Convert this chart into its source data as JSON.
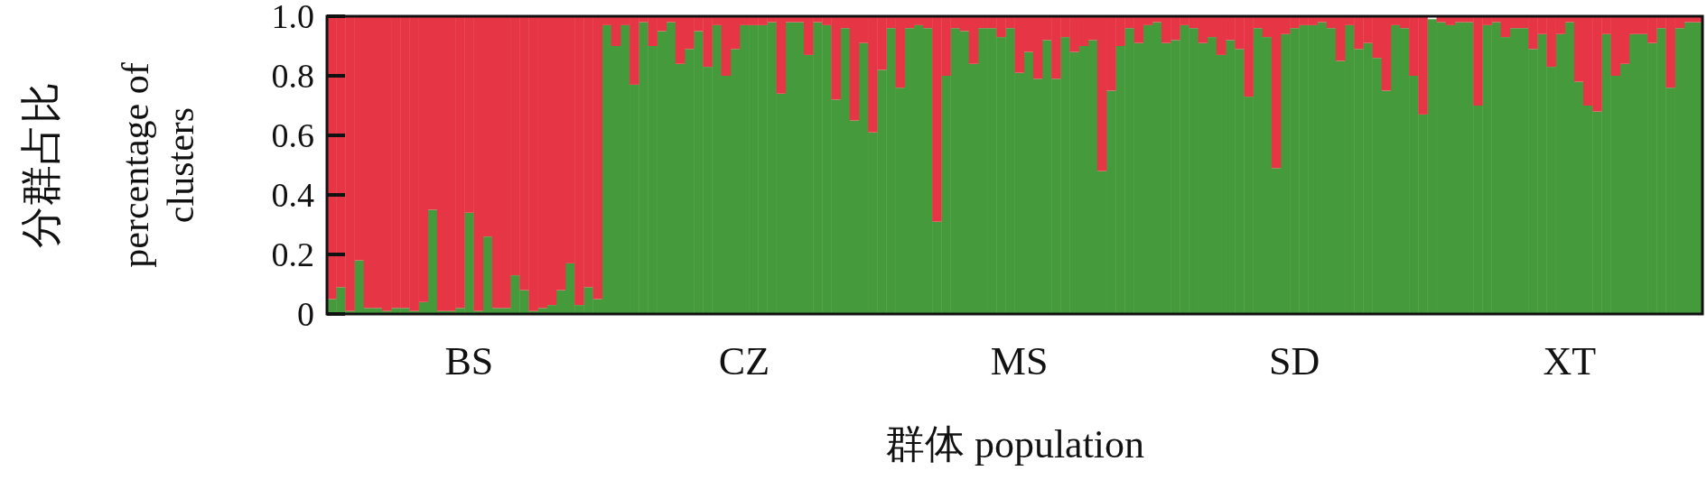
{
  "chart_data": {
    "type": "bar",
    "stacked": true,
    "xlabel": "群体 population",
    "ylabel": "分群占比\npercentage of\nclusters",
    "categories": [
      null,
      null,
      null,
      null,
      null,
      null,
      null,
      null,
      null,
      null,
      null,
      null,
      null,
      null,
      null,
      "BS",
      null,
      null,
      null,
      null,
      null,
      null,
      null,
      null,
      null,
      null,
      null,
      null,
      null,
      null,
      null,
      null,
      null,
      null,
      null,
      null,
      null,
      null,
      null,
      null,
      null,
      null,
      null,
      null,
      null,
      "CZ",
      null,
      null,
      null,
      null,
      null,
      null,
      null,
      null,
      null,
      null,
      null,
      null,
      null,
      null,
      null,
      null,
      null,
      null,
      null,
      null,
      null,
      null,
      null,
      null,
      null,
      null,
      null,
      null,
      null,
      "MS",
      null,
      null,
      null,
      null,
      null,
      null,
      null,
      null,
      null,
      null,
      null,
      null,
      null,
      null,
      null,
      null,
      null,
      null,
      null,
      null,
      null,
      null,
      null,
      null,
      null,
      null,
      null,
      null,
      null,
      "SD",
      null,
      null,
      null,
      null,
      null,
      null,
      null,
      null,
      null,
      null,
      null,
      null,
      null,
      null,
      null,
      null,
      null,
      null,
      null,
      null,
      null,
      null,
      null,
      null,
      null,
      null,
      null,
      null,
      null,
      "XT",
      null,
      null,
      null,
      null,
      null,
      null,
      null,
      null,
      null,
      null,
      null,
      null,
      null,
      null
    ],
    "ylim": [
      0,
      1.0
    ],
    "yticks": [
      0,
      {
        "value": 0.2,
        "label": "0.2"
      },
      {
        "value": 0.4,
        "label": "0.4"
      },
      {
        "value": 0.6,
        "label": "0.6"
      },
      {
        "value": 0.8,
        "label": "0.8"
      },
      {
        "value": 1.0,
        "label": "1.0"
      }
    ],
    "series": [
      {
        "color": "#459b3c",
        "values": [
          0.05,
          0.09,
          0.01,
          0.18,
          0.02,
          0.02,
          0.01,
          0.02,
          0.02,
          0.01,
          0.04,
          0.35,
          0.01,
          0.01,
          0.02,
          0.34,
          0.01,
          0.26,
          0.02,
          0.02,
          0.13,
          0.08,
          0.01,
          0.02,
          0.03,
          0.08,
          0.17,
          0.03,
          0.09,
          0.05,
          0.97,
          0.9,
          0.97,
          0.77,
          0.98,
          0.9,
          0.95,
          0.98,
          0.84,
          0.89,
          0.95,
          0.83,
          0.97,
          0.8,
          0.89,
          0.97,
          0.97,
          0.97,
          0.98,
          0.74,
          0.98,
          0.98,
          0.87,
          0.98,
          0.97,
          0.72,
          0.96,
          0.65,
          0.91,
          0.61,
          0.82,
          0.96,
          0.76,
          0.96,
          0.97,
          0.96,
          0.31,
          0.8,
          0.96,
          0.95,
          0.84,
          0.96,
          0.96,
          0.93,
          0.96,
          0.81,
          0.88,
          0.79,
          0.92,
          0.79,
          0.93,
          0.88,
          0.9,
          0.92,
          0.48,
          0.75,
          0.9,
          0.96,
          0.91,
          0.97,
          0.98,
          0.91,
          0.92,
          0.97,
          0.96,
          0.91,
          0.93,
          0.87,
          0.92,
          0.89,
          0.73,
          0.96,
          0.93,
          0.49,
          0.94,
          0.96,
          0.97,
          0.97,
          0.98,
          0.96,
          0.85,
          0.97,
          0.89,
          0.91,
          0.86,
          0.75,
          0.97,
          0.96,
          0.8,
          0.67,
          0.99,
          0.98,
          0.97,
          0.98,
          0.98,
          0.7,
          0.97,
          0.98,
          0.93,
          0.96,
          0.96,
          0.89,
          0.94,
          0.83,
          0.94,
          0.98,
          0.78,
          0.7,
          0.68,
          0.94,
          0.8,
          0.84,
          0.94,
          0.94,
          0.91,
          0.96,
          0.76,
          0.96,
          0.98,
          0.98
        ]
      },
      {
        "color": "#e63646",
        "values": [
          0.95,
          0.91,
          0.99,
          0.82,
          0.98,
          0.98,
          0.99,
          0.98,
          0.98,
          0.99,
          0.96,
          0.65,
          0.99,
          0.99,
          0.98,
          0.66,
          0.99,
          0.74,
          0.98,
          0.98,
          0.87,
          0.92,
          0.99,
          0.98,
          0.97,
          0.92,
          0.83,
          0.97,
          0.91,
          0.95,
          0.03,
          0.1,
          0.03,
          0.23,
          0.02,
          0.1,
          0.05,
          0.02,
          0.16,
          0.11,
          0.05,
          0.17,
          0.03,
          0.2,
          0.11,
          0.03,
          0.03,
          0.03,
          0.02,
          0.26,
          0.02,
          0.02,
          0.13,
          0.02,
          0.03,
          0.28,
          0.04,
          0.35,
          0.09,
          0.39,
          0.18,
          0.04,
          0.24,
          0.04,
          0.03,
          0.04,
          0.69,
          0.2,
          0.04,
          0.05,
          0.16,
          0.04,
          0.04,
          0.07,
          0.04,
          0.19,
          0.12,
          0.21,
          0.08,
          0.21,
          0.07,
          0.12,
          0.1,
          0.08,
          0.52,
          0.25,
          0.1,
          0.04,
          0.09,
          0.03,
          0.02,
          0.09,
          0.08,
          0.03,
          0.04,
          0.09,
          0.07,
          0.13,
          0.08,
          0.11,
          0.27,
          0.04,
          0.07,
          0.51,
          0.06,
          0.04,
          0.03,
          0.03,
          0.02,
          0.04,
          0.15,
          0.03,
          0.11,
          0.09,
          0.14,
          0.25,
          0.03,
          0.04,
          0.2,
          0.33,
          null,
          0.02,
          0.03,
          0.02,
          0.02,
          0.3,
          0.03,
          0.02,
          0.07,
          0.04,
          0.04,
          0.11,
          0.06,
          0.17,
          0.06,
          0.02,
          0.22,
          0.3,
          0.32,
          0.06,
          0.2,
          0.16,
          0.06,
          0.06,
          0.09,
          0.04,
          0.24,
          0.04,
          0.02,
          0.02
        ]
      }
    ]
  }
}
